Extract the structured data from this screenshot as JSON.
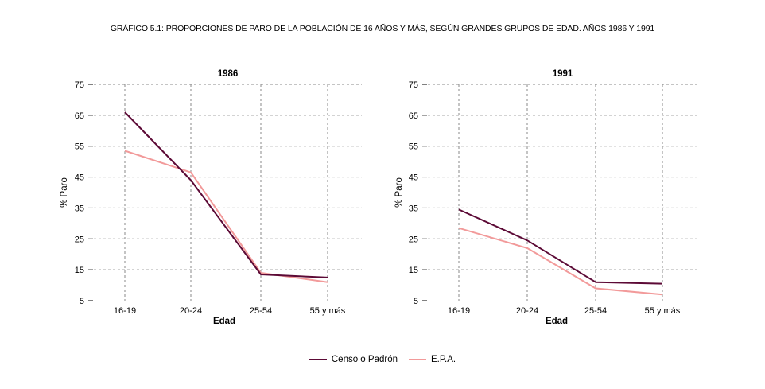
{
  "title": "GRÁFICO 5.1: PROPORCIONES DE PARO DE LA POBLACIÓN DE 16 AÑOS Y MÁS, SEGÚN GRANDES GRUPOS DE EDAD. AÑOS 1986 Y 1991",
  "colors": {
    "censo": "#5c0a36",
    "epa": "#f29a9a",
    "grid": "#8a8a8a"
  },
  "legend": [
    {
      "label": "Censo o  Padrón",
      "color": "#5c0a36"
    },
    {
      "label": "E.P.A.",
      "color": "#f29a9a"
    }
  ],
  "chart_data": [
    {
      "type": "line",
      "title": "1986",
      "xlabel": "Edad",
      "ylabel": "% Paro",
      "categories": [
        "16-19",
        "20-24",
        "25-54",
        "55 y más"
      ],
      "ylim": [
        5,
        75
      ],
      "yticks": [
        5,
        15,
        25,
        35,
        45,
        55,
        65,
        75
      ],
      "grid": true,
      "series": [
        {
          "name": "Censo o  Padrón",
          "values": [
            66,
            44,
            13.5,
            12.5
          ]
        },
        {
          "name": "E.P.A.",
          "values": [
            53.5,
            46.5,
            14,
            11
          ]
        }
      ]
    },
    {
      "type": "line",
      "title": "1991",
      "xlabel": "Edad",
      "ylabel": "% Paro",
      "categories": [
        "16-19",
        "20-24",
        "25-54",
        "55 y más"
      ],
      "ylim": [
        5,
        75
      ],
      "yticks": [
        5,
        15,
        25,
        35,
        45,
        55,
        65,
        75
      ],
      "grid": true,
      "series": [
        {
          "name": "Censo o  Padrón",
          "values": [
            34.5,
            24.5,
            11,
            10.5
          ]
        },
        {
          "name": "E.P.A.",
          "values": [
            28.5,
            22,
            9,
            7
          ]
        }
      ]
    }
  ]
}
